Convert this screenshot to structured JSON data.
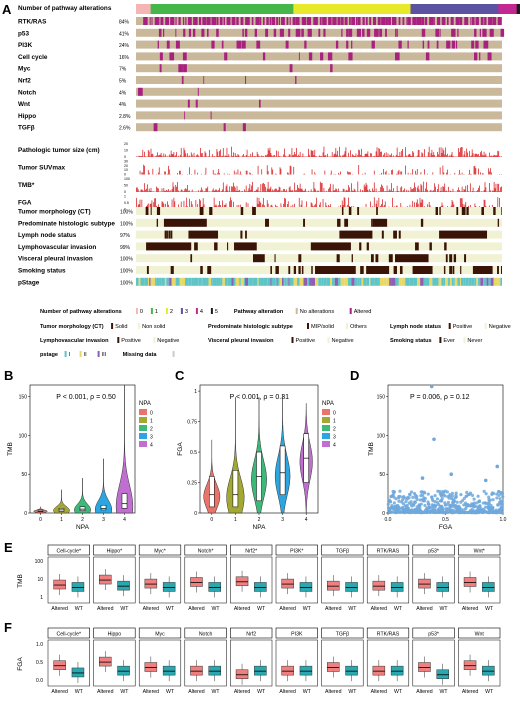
{
  "panels": {
    "A": "A",
    "B": "B",
    "C": "C",
    "D": "D",
    "E": "E",
    "F": "F"
  },
  "colors": {
    "npa": [
      "#f4b6b4",
      "#45b649",
      "#e8e92b",
      "#5b52a2",
      "#c2288f",
      "#1c1c1c"
    ],
    "altered": "#a8217e",
    "noalt": "#c9b99a",
    "dark": "#3b1408",
    "light": "#f1f2d3",
    "red": "#d7191c",
    "box_alt": "#f08080",
    "box_wt": "#2aa8b0",
    "scatter": "#6fa8dc"
  },
  "oncoprint": {
    "header": "Number of pathway alterations",
    "npa_fractions": [
      0.04,
      0.39,
      0.32,
      0.24,
      0.05,
      0.01
    ],
    "alteration_rows": [
      {
        "name": "RTK/RAS",
        "pct": "84%",
        "rate": 0.84
      },
      {
        "name": "p53",
        "pct": "41%",
        "rate": 0.41
      },
      {
        "name": "PI3K",
        "pct": "24%",
        "rate": 0.24
      },
      {
        "name": "Cell cycle",
        "pct": "16%",
        "rate": 0.16
      },
      {
        "name": "Myc",
        "pct": "7%",
        "rate": 0.07
      },
      {
        "name": "Nrf2",
        "pct": "5%",
        "rate": 0.05
      },
      {
        "name": "Notch",
        "pct": "4%",
        "rate": 0.04
      },
      {
        "name": "Wnt",
        "pct": "4%",
        "rate": 0.04
      },
      {
        "name": "Hippo",
        "pct": "2.8%",
        "rate": 0.028
      },
      {
        "name": "TGFβ",
        "pct": "2.6%",
        "rate": 0.026
      }
    ],
    "continuous_rows": [
      {
        "name": "Pathologic tumor size (cm)",
        "ticks": [
          "20",
          "10",
          "0"
        ]
      },
      {
        "name": "Tumor SUVmax",
        "ticks": [
          "30",
          "20",
          "10",
          "0"
        ]
      },
      {
        "name": "TMB*",
        "ticks": [
          "100",
          "50",
          "0"
        ]
      },
      {
        "name": "FGA",
        "ticks": [
          "1",
          "0.5",
          "0"
        ]
      }
    ],
    "categorical_rows": [
      {
        "name": "Tumor morphology (CT)",
        "pct": "100%"
      },
      {
        "name": "Predominate histologic subtype",
        "pct": "100%"
      },
      {
        "name": "Lymph node status",
        "pct": "97%"
      },
      {
        "name": "Lymphovascular invasion",
        "pct": "99%"
      },
      {
        "name": "Visceral pleural invasion",
        "pct": "100%"
      },
      {
        "name": "Smoking status",
        "pct": "100%"
      },
      {
        "name": "pStage",
        "pct": "100%"
      }
    ]
  },
  "legend": {
    "npa_title": "Number of pathway alterations",
    "npa_items": [
      "0",
      "1",
      "2",
      "3",
      "4",
      "5"
    ],
    "pathway_title": "Pathway alteration",
    "pathway_items": [
      "No alterations",
      "Altered"
    ],
    "morph_title": "Tumor morphology (CT)",
    "morph_items": [
      "Solid",
      "Non solid"
    ],
    "histo_title": "Predominate histologic subtype",
    "histo_items": [
      "MIP/solid",
      "Others"
    ],
    "lymph_title": "Lymph node status",
    "lymph_items": [
      "Positive",
      "Negative"
    ],
    "lvi_title": "Lymphovascular invasion",
    "lvi_items": [
      "Positive",
      "Negative"
    ],
    "vpi_title": "Visceral pleural invasion",
    "vpi_items": [
      "Positive",
      "Negative"
    ],
    "smoke_title": "Smoking status",
    "smoke_items": [
      "Ever",
      "Never"
    ],
    "pstage_title": "pstage",
    "pstage_items": [
      "I",
      "II",
      "III"
    ],
    "missing": "Missing data"
  },
  "chart_data": [
    {
      "panel": "B",
      "type": "violin",
      "annotation": "P < 0.001, ρ = 0.50",
      "xlabel": "NPA",
      "ylabel": "TMB",
      "categories": [
        "0",
        "1",
        "2",
        "3",
        "4"
      ],
      "ylim": [
        0,
        165
      ],
      "yticks": [
        0,
        50,
        100,
        150
      ],
      "medians": [
        2.5,
        4,
        5,
        6,
        12
      ],
      "q1": [
        1.5,
        2,
        3,
        4,
        6
      ],
      "q3": [
        4,
        6,
        8,
        10,
        25
      ],
      "max": [
        8,
        30,
        45,
        70,
        165
      ],
      "legend_title": "NPA",
      "legend_items": [
        "0",
        "1",
        "2",
        "3",
        "4"
      ]
    },
    {
      "panel": "C",
      "type": "violin",
      "annotation": "P < 0.001, ρ = 0.31",
      "xlabel": "NPA",
      "ylabel": "FGA",
      "categories": [
        "0",
        "1",
        "2",
        "3",
        "4"
      ],
      "ylim": [
        0,
        1.05
      ],
      "yticks": [
        0.0,
        0.25,
        0.5,
        0.75,
        1.0
      ],
      "medians": [
        0.15,
        0.15,
        0.3,
        0.33,
        0.45
      ],
      "q1": [
        0.05,
        0.05,
        0.1,
        0.15,
        0.25
      ],
      "q3": [
        0.3,
        0.35,
        0.5,
        0.55,
        0.65
      ],
      "max": [
        0.6,
        0.95,
        0.95,
        0.97,
        0.9
      ],
      "legend_title": "NPA",
      "legend_items": [
        "0",
        "1",
        "2",
        "3",
        "4"
      ]
    },
    {
      "panel": "D",
      "type": "scatter",
      "annotation": "P = 0.006, ρ = 0.12",
      "xlabel": "FGA",
      "ylabel": "TMB",
      "xlim": [
        0,
        1.0
      ],
      "ylim": [
        0,
        165
      ],
      "xticks": [
        0.0,
        0.5,
        1.0
      ],
      "yticks": [
        0,
        50,
        100,
        150
      ],
      "highlight_points": [
        [
          0.38,
          163
        ],
        [
          0.4,
          95
        ],
        [
          0.55,
          50
        ],
        [
          0.3,
          45
        ],
        [
          0.85,
          42
        ],
        [
          0.95,
          60
        ]
      ]
    },
    {
      "panel": "E",
      "type": "boxplot",
      "ylabel": "TMB",
      "yscale": "log",
      "yticks": [
        "1",
        "10",
        "100"
      ],
      "groups": [
        "Altered",
        "WT"
      ],
      "pathways": [
        "Cell-cycle*",
        "Hippo*",
        "Myc*",
        "Notch*",
        "Nrf2*",
        "PI3K*",
        "TGFβ",
        "RTK/RAS",
        "p53*",
        "Wnt*"
      ],
      "altered_median": [
        7,
        14,
        8,
        10,
        11,
        8,
        6,
        6,
        8,
        10
      ],
      "wt_median": [
        5,
        6,
        5,
        5,
        5,
        5,
        5,
        5,
        5,
        5
      ]
    },
    {
      "panel": "F",
      "type": "boxplot",
      "ylabel": "FGA",
      "yticks": [
        "0.0",
        "0.5",
        "1.0"
      ],
      "groups": [
        "Altered",
        "WT"
      ],
      "pathways": [
        "Cell-cycle*",
        "Hippo",
        "Myc",
        "Notch",
        "Nrf2",
        "PI3K",
        "TGFβ",
        "RTK/RAS",
        "p53*",
        "Wnt"
      ],
      "altered_median": [
        0.45,
        0.55,
        0.4,
        0.3,
        0.2,
        0.3,
        0.4,
        0.3,
        0.4,
        0.45
      ],
      "wt_median": [
        0.25,
        0.3,
        0.3,
        0.3,
        0.3,
        0.3,
        0.3,
        0.3,
        0.2,
        0.3
      ]
    }
  ]
}
